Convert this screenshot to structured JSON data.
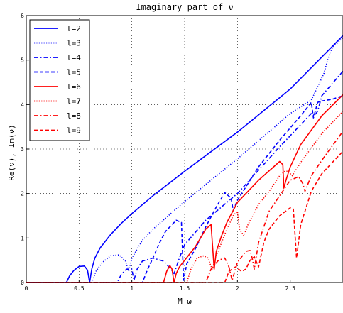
{
  "chart_data": {
    "type": "line",
    "title": "Imaginary part of ν",
    "xlabel": "M ω",
    "ylabel": "Re(ν), Im(ν)",
    "xlim": [
      0,
      3
    ],
    "ylim": [
      0,
      6
    ],
    "xticks": [
      "0",
      "0.5",
      "1",
      "1.5",
      "2",
      "2.5"
    ],
    "yticks": [
      "0",
      "1",
      "2",
      "3",
      "4",
      "5",
      "6"
    ],
    "grid": true,
    "legend_position": "top-left",
    "series": [
      {
        "name": "l=2",
        "color": "#0000ff",
        "dash": "solid",
        "x": [
          0,
          0.38,
          0.41,
          0.45,
          0.5,
          0.55,
          0.58,
          0.6,
          0.62,
          0.65,
          0.7,
          0.8,
          0.9,
          1.0,
          1.2,
          1.5,
          2.0,
          2.5,
          3.0
        ],
        "y": [
          0,
          0,
          0.15,
          0.27,
          0.36,
          0.37,
          0.28,
          0,
          0.3,
          0.55,
          0.78,
          1.08,
          1.33,
          1.55,
          1.95,
          2.5,
          3.38,
          4.35,
          5.55
        ]
      },
      {
        "name": "l=3",
        "color": "#0000ff",
        "dash": "dotted",
        "x": [
          0,
          0.62,
          0.66,
          0.72,
          0.8,
          0.88,
          0.94,
          0.97,
          1.0,
          1.05,
          1.1,
          1.2,
          1.5,
          2.0,
          2.5,
          2.7,
          2.82,
          2.86,
          2.9,
          3.0
        ],
        "y": [
          0,
          0,
          0.25,
          0.45,
          0.6,
          0.62,
          0.48,
          0.25,
          0.55,
          0.75,
          0.95,
          1.2,
          1.82,
          2.78,
          3.8,
          4.1,
          4.7,
          5.05,
          5.28,
          5.5
        ]
      },
      {
        "name": "l=4",
        "color": "#0000ff",
        "dash": "dashdot",
        "x": [
          0,
          0.86,
          0.9,
          0.95,
          1.0,
          1.02,
          1.05,
          1.1,
          1.2,
          1.3,
          1.37,
          1.4,
          1.45,
          1.5,
          1.7,
          2.0,
          2.4,
          2.7,
          2.73,
          2.76,
          2.8,
          3.0
        ],
        "y": [
          0,
          0,
          0.18,
          0.3,
          0.3,
          0.05,
          0.3,
          0.48,
          0.55,
          0.48,
          0.3,
          0.2,
          0.55,
          0.85,
          1.4,
          2.0,
          3.05,
          3.8,
          3.75,
          3.85,
          4.2,
          4.75
        ]
      },
      {
        "name": "l=5",
        "color": "#0000ff",
        "dash": "dashed",
        "x": [
          0,
          1.1,
          1.15,
          1.2,
          1.26,
          1.32,
          1.38,
          1.42,
          1.47,
          1.49,
          1.52,
          1.6,
          1.7,
          1.8,
          1.88,
          1.94,
          1.96,
          2.0,
          2.2,
          2.4,
          2.6,
          2.7,
          2.72,
          2.76,
          2.8,
          2.9,
          3.0
        ],
        "y": [
          0,
          0,
          0.3,
          0.55,
          0.88,
          1.15,
          1.3,
          1.4,
          1.35,
          0.05,
          0.42,
          0.75,
          1.25,
          1.7,
          2.02,
          1.9,
          1.62,
          1.85,
          2.6,
          3.2,
          3.75,
          4.05,
          3.7,
          4.05,
          4.08,
          4.12,
          4.2
        ]
      },
      {
        "name": "l=6",
        "color": "#ff0000",
        "dash": "solid",
        "x": [
          0,
          1.3,
          1.33,
          1.36,
          1.38,
          1.4,
          1.42,
          1.45,
          1.5,
          1.6,
          1.7,
          1.75,
          1.78,
          1.8,
          1.85,
          1.9,
          2.0,
          2.2,
          2.4,
          2.43,
          2.44,
          2.46,
          2.5,
          2.6,
          2.8,
          3.0
        ],
        "y": [
          0,
          0,
          0.25,
          0.38,
          0.3,
          0,
          0.2,
          0.35,
          0.5,
          0.8,
          1.2,
          1.3,
          0.3,
          0.7,
          1.05,
          1.35,
          1.8,
          2.3,
          2.72,
          2.65,
          2.12,
          2.3,
          2.6,
          3.1,
          3.75,
          4.22
        ]
      },
      {
        "name": "l=7",
        "color": "#ff0000",
        "dash": "dotted",
        "x": [
          0,
          1.52,
          1.56,
          1.62,
          1.68,
          1.72,
          1.76,
          1.8,
          1.9,
          1.96,
          2.0,
          2.02,
          2.06,
          2.1,
          2.2,
          2.3,
          2.4,
          2.45,
          2.48,
          2.52,
          2.6,
          2.8,
          3.0
        ],
        "y": [
          0,
          0,
          0.3,
          0.55,
          0.6,
          0.55,
          0.3,
          0.6,
          1.2,
          1.5,
          1.6,
          1.2,
          1.05,
          1.3,
          1.75,
          2.05,
          2.4,
          2.5,
          2.5,
          2.4,
          2.7,
          3.35,
          3.85
        ]
      },
      {
        "name": "l=8",
        "color": "#ff0000",
        "dash": "dashdot",
        "x": [
          0,
          1.7,
          1.75,
          1.82,
          1.88,
          1.92,
          1.95,
          2.0,
          2.08,
          2.12,
          2.14,
          2.16,
          2.2,
          2.3,
          2.4,
          2.5,
          2.58,
          2.62,
          2.64,
          2.7,
          2.8,
          3.0
        ],
        "y": [
          0,
          0,
          0.3,
          0.5,
          0.55,
          0.35,
          0.05,
          0.45,
          0.7,
          0.72,
          0.55,
          0.3,
          0.9,
          1.6,
          1.95,
          2.3,
          2.38,
          2.22,
          2.05,
          2.4,
          2.75,
          3.4
        ]
      },
      {
        "name": "l=9",
        "color": "#ff0000",
        "dash": "dashed",
        "x": [
          0,
          1.88,
          1.92,
          1.98,
          2.04,
          2.08,
          2.12,
          2.16,
          2.2,
          2.25,
          2.3,
          2.4,
          2.5,
          2.53,
          2.56,
          2.6,
          2.7,
          2.8,
          2.9,
          3.0
        ],
        "y": [
          0,
          0,
          0.25,
          0.35,
          0.25,
          0.3,
          0.5,
          0.58,
          0.35,
          0.9,
          1.2,
          1.5,
          1.68,
          1.65,
          0.55,
          1.3,
          2.05,
          2.45,
          2.7,
          2.95
        ]
      }
    ]
  }
}
